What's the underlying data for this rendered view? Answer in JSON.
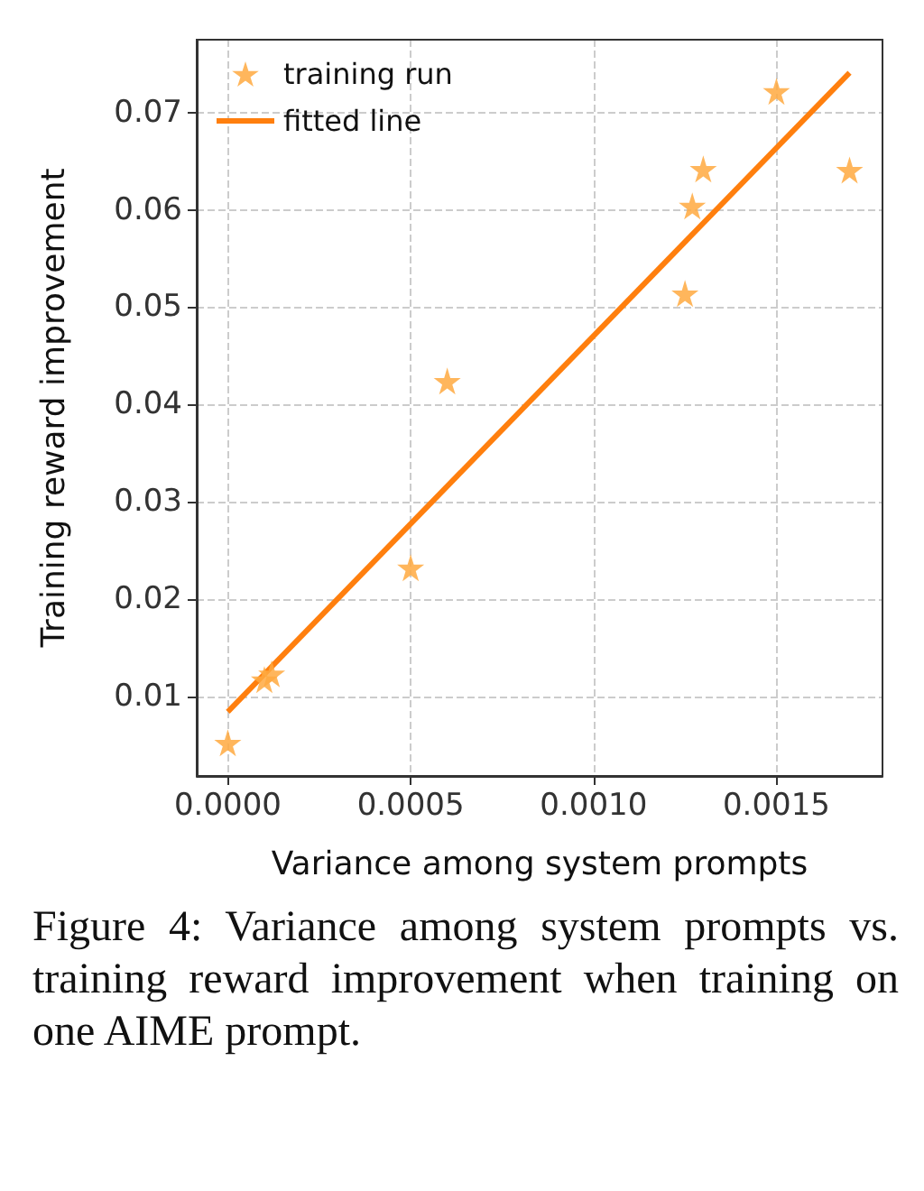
{
  "chart_data": {
    "type": "scatter",
    "xlabel": "Variance among system prompts",
    "ylabel": "Training reward improvement",
    "series": [
      {
        "name": "training run",
        "color": "#ffa940",
        "marker": "star",
        "x": [
          0,
          0.0001,
          0.00012,
          0.0005,
          0.0006,
          0.00125,
          0.00127,
          0.0013,
          0.0015,
          0.0017
        ],
        "values": [
          0.0052,
          0.0117,
          0.0123,
          0.0232,
          0.0424,
          0.0514,
          0.0604,
          0.0642,
          0.0722,
          0.0641
        ]
      },
      {
        "name": "fitted line",
        "type": "line",
        "color": "#ff7f0e",
        "line_style": "solid",
        "x": [
          0,
          0.0017
        ],
        "values": [
          0.0084,
          0.0741
        ]
      }
    ],
    "xlim": [
      -8.5e-05,
      0.00179
    ],
    "ylim": [
      0.0018,
      0.0775
    ],
    "xticks": [
      {
        "value": 0,
        "label": "0.0000"
      },
      0.0005,
      {
        "value": 0.001,
        "label": "0.0010"
      },
      0.0015
    ],
    "yticks": [
      0.01,
      0.02,
      0.03,
      0.04,
      0.05,
      0.06,
      0.07
    ],
    "grid": true,
    "legend": "top left",
    "annotations": [
      "Figure 4: Variance among system prompts vs. training reward improvement when training on one AIME prompt."
    ]
  }
}
